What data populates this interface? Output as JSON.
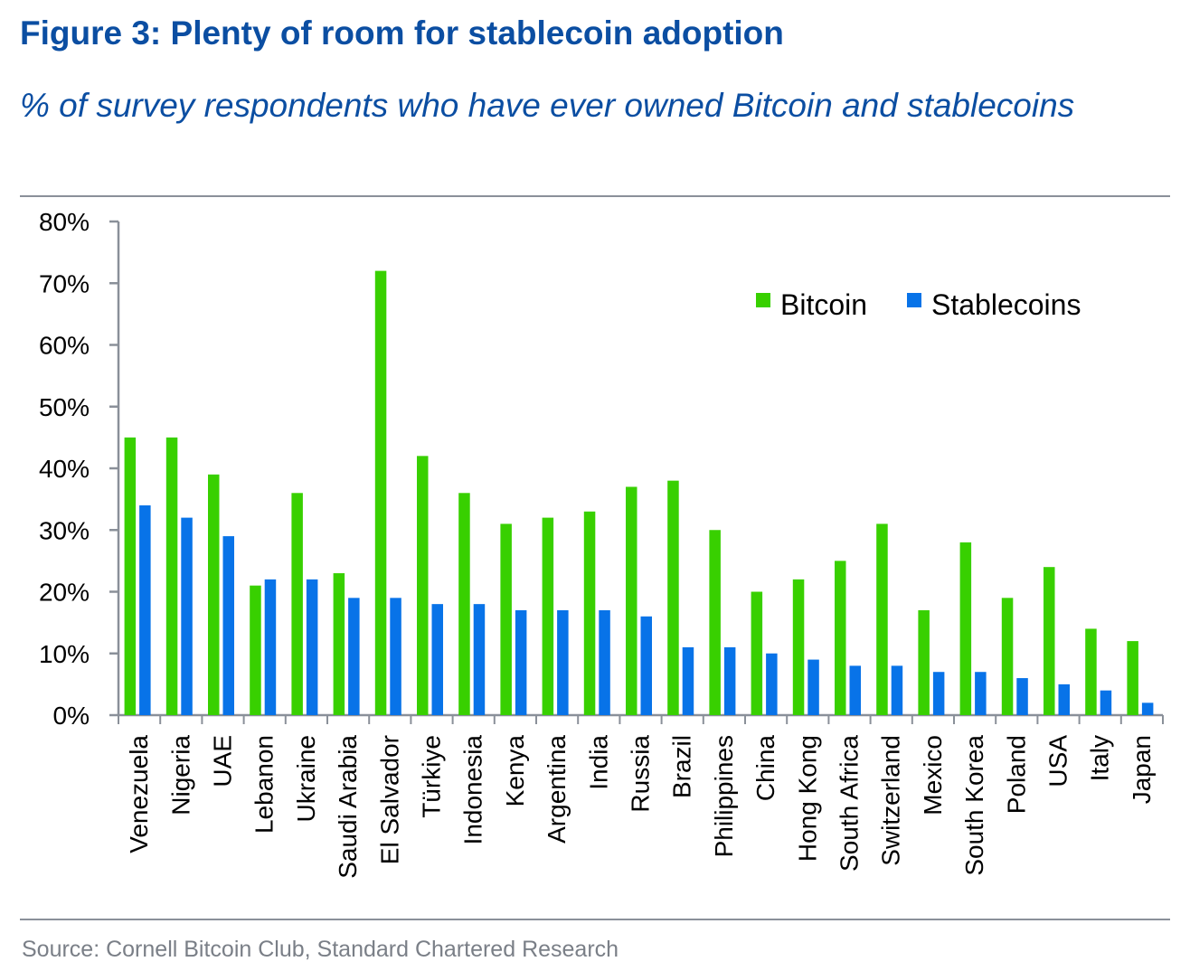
{
  "title": "Figure 3: Plenty of room for stablecoin adoption",
  "subtitle": "% of survey respondents who have ever owned Bitcoin and stablecoins",
  "source": "Source: Cornell Bitcoin Club, Standard Chartered Research",
  "chart_data": {
    "type": "bar",
    "title": "Figure 3: Plenty of room for stablecoin adoption",
    "subtitle": "% of survey respondents who have ever owned Bitcoin and stablecoins",
    "categories": [
      "Venezuela",
      "Nigeria",
      "UAE",
      "Lebanon",
      "Ukraine",
      "Saudi Arabia",
      "El Salvador",
      "Türkiye",
      "Indonesia",
      "Kenya",
      "Argentina",
      "India",
      "Russia",
      "Brazil",
      "Philippines",
      "China",
      "Hong Kong",
      "South Africa",
      "Switzerland",
      "Mexico",
      "South Korea",
      "Poland",
      "USA",
      "Italy",
      "Japan"
    ],
    "series": [
      {
        "name": "Bitcoin",
        "color": "#38d000",
        "values": [
          45,
          45,
          39,
          21,
          36,
          23,
          72,
          42,
          36,
          31,
          32,
          33,
          37,
          38,
          30,
          20,
          22,
          25,
          31,
          17,
          28,
          19,
          24,
          14,
          12
        ]
      },
      {
        "name": "Stablecoins",
        "color": "#0873e8",
        "values": [
          34,
          32,
          29,
          22,
          22,
          19,
          19,
          18,
          18,
          17,
          17,
          17,
          16,
          11,
          11,
          10,
          9,
          8,
          8,
          7,
          7,
          6,
          5,
          4,
          2
        ]
      }
    ],
    "ylim": [
      0,
      80
    ],
    "yticks": [
      "0%",
      "10%",
      "20%",
      "30%",
      "40%",
      "50%",
      "60%",
      "70%",
      "80%"
    ],
    "ytick_values": [
      0,
      10,
      20,
      30,
      40,
      50,
      60,
      70,
      80
    ],
    "legend": "top-right",
    "grid": false,
    "axis_color": "#8a9099"
  }
}
